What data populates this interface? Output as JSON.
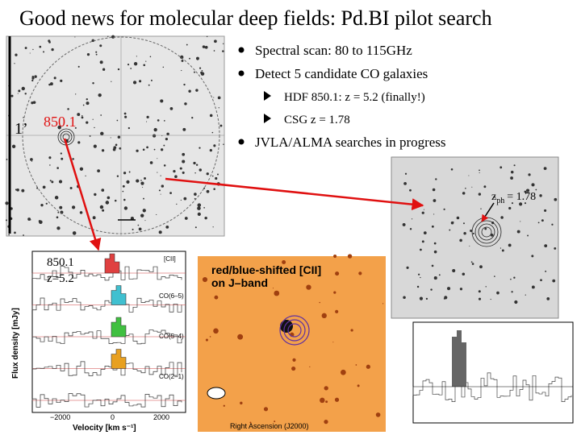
{
  "title": "Good news for molecular deep fields: Pd.BI pilot search",
  "bullets": [
    {
      "text": "Spectral scan: 80 to 115GHz"
    },
    {
      "text": "Detect 5 candidate CO galaxies",
      "items": [
        "HDF 850.1: z = 5.2 (finally!)",
        "CSG  z = 1.78"
      ]
    },
    {
      "text": "JVLA/ALMA searches in progress"
    }
  ],
  "field_image": {
    "scale_label": "1’",
    "source_label": "850.1"
  },
  "spectra_panel": {
    "source": "850.1",
    "redshift": "z=5.2",
    "lines": [
      "[CII]",
      "CO(6–5)",
      "CO(5–4)",
      "CO(2–1)"
    ],
    "x_label": "Velocity [km s⁻¹]",
    "y_label": "Flux density [mJy]",
    "x_ticks": [
      "−2000",
      "0",
      "2000"
    ]
  },
  "cii_image": {
    "title_line1": "red/blue-shifted [CII]",
    "title_line2": "on J–band",
    "x_label": "Right Ascension (J2000)"
  },
  "csg_image": {
    "z": "z",
    "sub": "ph",
    "value": "= 1.78"
  }
}
